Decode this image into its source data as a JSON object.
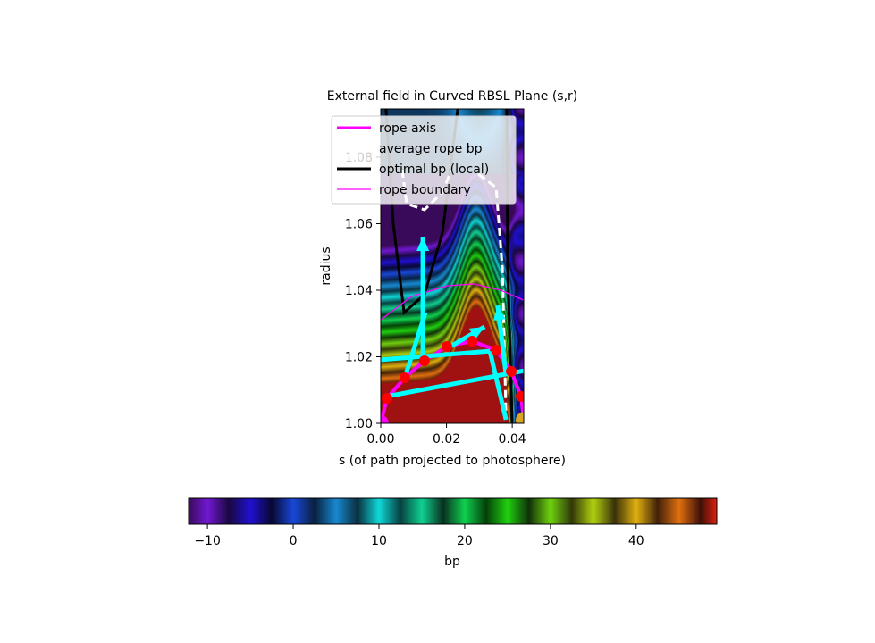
{
  "chart_data": {
    "type": "heatmap",
    "title": "External field in Curved RBSL Plane (s,r)",
    "xlabel": "s (of path projected to photosphere)",
    "ylabel": "radius",
    "xlim": [
      0,
      0.0435
    ],
    "ylim": [
      1.0,
      1.0945
    ],
    "xticks": [
      {
        "v": 0,
        "label": "0.00"
      },
      {
        "v": 0.02,
        "label": "0.02"
      },
      {
        "v": 0.04,
        "label": "0.04"
      }
    ],
    "yticks": [
      {
        "v": 1.0,
        "label": "1.00"
      },
      {
        "v": 1.02,
        "label": "1.02"
      },
      {
        "v": 1.04,
        "label": "1.04"
      },
      {
        "v": 1.06,
        "label": "1.06"
      },
      {
        "v": 1.08,
        "label": "1.08"
      }
    ],
    "grid": false,
    "legend": {
      "placement": "top",
      "entries": [
        {
          "label": "rope axis",
          "color": "#ff00ff",
          "style": "thick"
        },
        {
          "label": "average rope bp",
          "color": "#ffffff",
          "style": "dashed"
        },
        {
          "label": "optimal bp (local)",
          "color": "#000000",
          "style": "thick"
        },
        {
          "label": "rope boundary",
          "color": "#ff00ff",
          "style": "thin"
        }
      ]
    },
    "rope_axis_points": [
      [
        0.0019,
        1.0075
      ],
      [
        0.0073,
        1.0137
      ],
      [
        0.0133,
        1.0188
      ],
      [
        0.0201,
        1.0231
      ],
      [
        0.0278,
        1.0247
      ],
      [
        0.0351,
        1.022
      ],
      [
        0.0397,
        1.0156
      ],
      [
        0.0427,
        1.0081
      ]
    ],
    "rope_boundary": [
      [
        0,
        1.0311
      ],
      [
        0.0093,
        1.0381
      ],
      [
        0.0201,
        1.0413
      ],
      [
        0.0283,
        1.0419
      ],
      [
        0.0365,
        1.04
      ],
      [
        0.0435,
        1.037
      ]
    ],
    "optimal_bp_local": [
      [
        [
          0.0016,
          1.0945
        ],
        [
          0.0038,
          1.0601
        ],
        [
          0.0071,
          1.0333
        ],
        [
          0.0133,
          1.0387
        ],
        [
          0.0188,
          1.0574
        ],
        [
          0.0234,
          1.0945
        ]
      ],
      [
        [
          0.0384,
          1.0945
        ],
        [
          0.0386,
          1.0467
        ],
        [
          0.04,
          1.0
        ]
      ]
    ],
    "average_rope_bp": [
      [
        [
          0.0065,
          1.0762
        ],
        [
          0.0079,
          1.066
        ],
        [
          0.0133,
          1.0642
        ],
        [
          0.0188,
          1.0695
        ],
        [
          0.0215,
          1.0762
        ]
      ],
      [
        [
          0.0297,
          1.0749
        ],
        [
          0.0351,
          1.0709
        ],
        [
          0.037,
          1.0467
        ],
        [
          0.0381,
          1.0024
        ]
      ]
    ],
    "field_vectors": [
      {
        "from": [
          0.0019,
          1.0081
        ],
        "to": [
          0.0435,
          1.0158
        ],
        "arrow": false
      },
      {
        "from": [
          0.0,
          1.0191
        ],
        "to": [
          0.0332,
          1.0217
        ],
        "arrow": false
      },
      {
        "from": [
          0.0332,
          1.0217
        ],
        "to": [
          0.0381,
          1.0011
        ],
        "arrow": false
      },
      {
        "from": [
          0.0073,
          1.0137
        ],
        "to": [
          0.0136,
          1.0333
        ],
        "arrow": false
      },
      {
        "from": [
          0.0128,
          1.0204
        ],
        "to": [
          0.0128,
          1.0561
        ],
        "arrow": true
      },
      {
        "from": [
          0.0201,
          1.0225
        ],
        "to": [
          0.0316,
          1.029
        ],
        "arrow": true
      },
      {
        "from": [
          0.0381,
          1.0145
        ],
        "to": [
          0.0356,
          1.0354
        ],
        "arrow": true
      }
    ],
    "footpoints": [
      {
        "s": 0.0,
        "r": 1.0,
        "color": "#ff00ff"
      },
      {
        "s": 0.0435,
        "r": 1.001,
        "color": "#daa520"
      }
    ],
    "colorbar": {
      "label": "bp",
      "range": [
        -12.2,
        49.4
      ],
      "ticks": [
        {
          "v": -10,
          "label": "−10"
        },
        {
          "v": 0,
          "label": "0"
        },
        {
          "v": 10,
          "label": "10"
        },
        {
          "v": 20,
          "label": "20"
        },
        {
          "v": 30,
          "label": "30"
        },
        {
          "v": 40,
          "label": "40"
        }
      ],
      "colormap": [
        [
          -12.2,
          "#3a0a5a"
        ],
        [
          -10,
          "#7018d0"
        ],
        [
          -7.5,
          "#1a0840"
        ],
        [
          -5,
          "#2010d0"
        ],
        [
          -2.5,
          "#080830"
        ],
        [
          0,
          "#1848d8"
        ],
        [
          2.5,
          "#0a2040"
        ],
        [
          5,
          "#1888d0"
        ],
        [
          7.5,
          "#0a3040"
        ],
        [
          10,
          "#10d8d8"
        ],
        [
          12.5,
          "#084040"
        ],
        [
          15,
          "#10d090"
        ],
        [
          17.5,
          "#083020"
        ],
        [
          20,
          "#10d050"
        ],
        [
          22.5,
          "#044008"
        ],
        [
          25,
          "#20d010"
        ],
        [
          27.5,
          "#103008"
        ],
        [
          30,
          "#70d010"
        ],
        [
          32.5,
          "#303808"
        ],
        [
          35,
          "#b0d010"
        ],
        [
          37.5,
          "#383008"
        ],
        [
          40,
          "#e0b010"
        ],
        [
          42.5,
          "#402008"
        ],
        [
          45,
          "#e07010"
        ],
        [
          47.5,
          "#401008"
        ],
        [
          49.4,
          "#e02010"
        ]
      ]
    }
  }
}
